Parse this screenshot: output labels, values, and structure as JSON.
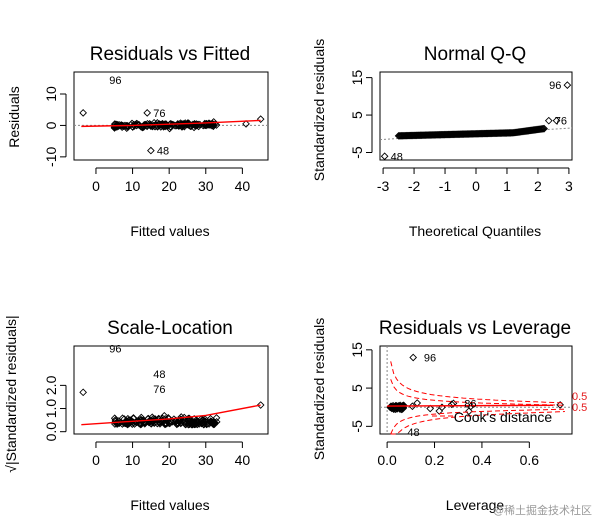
{
  "watermark": "@稀土掘金技术社区",
  "colors": {
    "smooth": "#ff0000",
    "cook": "#ff0000",
    "points": "#000000",
    "refline": "#888888"
  },
  "chart_data": [
    {
      "type": "scatter",
      "title": "Residuals vs Fitted",
      "xlabel": "Fitted values",
      "ylabel": "Residuals",
      "xlim": [
        -6,
        47
      ],
      "ylim": [
        -11,
        17
      ],
      "xticks": [
        0,
        10,
        20,
        30,
        40
      ],
      "xtick_labels": [
        "0",
        "10",
        "20",
        "30",
        "40"
      ],
      "yticks": [
        -10,
        0,
        10
      ],
      "ytick_labels": [
        "-10",
        "0",
        "10"
      ],
      "reference_line": 0,
      "labeled_points": [
        {
          "x": 2,
          "y": 14.5,
          "label": "96"
        },
        {
          "x": 14,
          "y": 4,
          "label": "76"
        },
        {
          "x": 15,
          "y": -8,
          "label": "48"
        }
      ],
      "outliers": [
        {
          "x": -3.5,
          "y": 4
        },
        {
          "x": 14,
          "y": 4
        },
        {
          "x": 15,
          "y": -8
        },
        {
          "x": 45,
          "y": 2
        },
        {
          "x": 41,
          "y": 0.5
        }
      ],
      "bulk": {
        "x_range": [
          5,
          33
        ],
        "y_sd": 0.6
      },
      "smooth": [
        [
          -4,
          -0.3
        ],
        [
          10,
          0
        ],
        [
          20,
          0.4
        ],
        [
          30,
          0.8
        ],
        [
          45,
          1.6
        ]
      ]
    },
    {
      "type": "scatter",
      "title": "Normal Q-Q",
      "xlabel": "Theoretical Quantiles",
      "ylabel": "Standardized residuals",
      "xlim": [
        -3.1,
        3.1
      ],
      "ylim": [
        -7,
        16.5
      ],
      "xticks": [
        -3,
        -2,
        -1,
        0,
        1,
        2,
        3
      ],
      "xtick_labels": [
        "-3",
        "-2",
        "-1",
        "0",
        "1",
        "2",
        "3"
      ],
      "yticks": [
        -5,
        5,
        15
      ],
      "ytick_labels": [
        "-5",
        "5",
        "15"
      ],
      "labeled_points": [
        {
          "x": 2.95,
          "y": 13,
          "label": "96"
        },
        {
          "x": 2.35,
          "y": 3.5,
          "label": "76"
        },
        {
          "x": -2.95,
          "y": -6,
          "label": "48"
        }
      ],
      "outliers": [
        {
          "x": 2.95,
          "y": 13
        },
        {
          "x": 2.35,
          "y": 3.5
        },
        {
          "x": -2.95,
          "y": -6
        },
        {
          "x": 2.6,
          "y": 3.5
        }
      ],
      "reference_line": {
        "slope": 0.5,
        "intercept": 0
      }
    },
    {
      "type": "scatter",
      "title": "Scale-Location",
      "xlabel": "Fitted values",
      "ylabel": "√|Standardized residuals|",
      "xlim": [
        -6,
        47
      ],
      "ylim": [
        -0.1,
        3.7
      ],
      "xticks": [
        0,
        10,
        20,
        30,
        40
      ],
      "xtick_labels": [
        "0",
        "10",
        "20",
        "30",
        "40"
      ],
      "yticks": [
        0,
        1,
        2
      ],
      "ytick_labels": [
        "0.0",
        "1.0",
        "2.0"
      ],
      "labeled_points": [
        {
          "x": 2,
          "y": 3.6,
          "label": "96"
        },
        {
          "x": 14,
          "y": 2.5,
          "label": "48"
        },
        {
          "x": 14,
          "y": 1.85,
          "label": "76"
        }
      ],
      "outliers": [
        {
          "x": -3.5,
          "y": 1.7
        },
        {
          "x": 45,
          "y": 1.15
        }
      ],
      "smooth": [
        [
          -4,
          0.3
        ],
        [
          10,
          0.45
        ],
        [
          20,
          0.55
        ],
        [
          30,
          0.7
        ],
        [
          45,
          1.15
        ]
      ]
    },
    {
      "type": "scatter",
      "title": "Residuals vs Leverage",
      "xlabel": "Leverage",
      "ylabel": "Standardized residuals",
      "xlim": [
        -0.03,
        0.78
      ],
      "ylim": [
        -7,
        16
      ],
      "xticks": [
        0,
        0.2,
        0.4,
        0.6
      ],
      "xtick_labels": [
        "0.0",
        "0.2",
        "0.4",
        "0.6"
      ],
      "yticks": [
        -5,
        5,
        15
      ],
      "ytick_labels": [
        "-5",
        "5",
        "15"
      ],
      "labeled_points": [
        {
          "x": 0.13,
          "y": 13,
          "label": "96"
        },
        {
          "x": 0.06,
          "y": -6.5,
          "label": "48"
        },
        {
          "x": 0.3,
          "y": 1,
          "label": "86"
        }
      ],
      "outliers": [
        {
          "x": 0.11,
          "y": 13
        },
        {
          "x": 0.73,
          "y": 0.6
        },
        {
          "x": 0.22,
          "y": -1
        },
        {
          "x": 0.28,
          "y": 1
        }
      ],
      "cook_label": "Cook's distance",
      "cook_levels": [
        "0.5",
        "0.5"
      ]
    }
  ]
}
